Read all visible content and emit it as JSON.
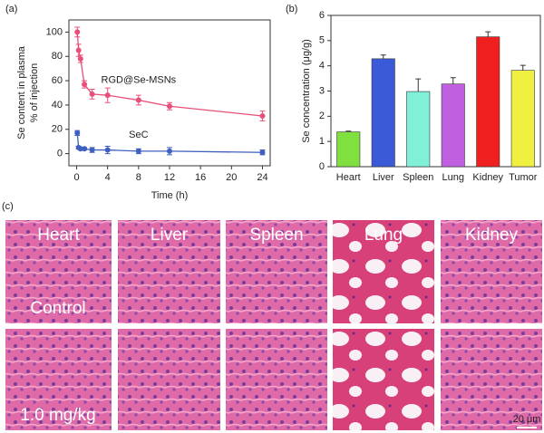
{
  "chart_data": [
    {
      "type": "line",
      "panel_label": "(a)",
      "ylabel": [
        "Se content in plasma",
        "% of injection"
      ],
      "xlabel": "Time (h)",
      "x": [
        0.083,
        0.25,
        0.5,
        1,
        2,
        4,
        8,
        12,
        24
      ],
      "series": [
        {
          "name": "RGD@Se-MSNs",
          "color": "#e8507a",
          "values": [
            100,
            85,
            78,
            57,
            49,
            48,
            44,
            39,
            31
          ],
          "errors": [
            4,
            5,
            3,
            3,
            4,
            6,
            4,
            3,
            4
          ]
        },
        {
          "name": "SeC",
          "color": "#4060c0",
          "values": [
            17,
            5,
            4,
            4,
            3,
            3,
            2,
            2,
            1
          ],
          "errors": [
            2,
            1,
            1,
            1,
            2,
            3,
            2,
            3,
            2
          ]
        }
      ],
      "xlim": [
        -1,
        25
      ],
      "xticks": [
        0,
        4,
        8,
        12,
        16,
        20,
        24
      ],
      "ylim": [
        -10,
        110
      ],
      "yticks": [
        0,
        20,
        40,
        60,
        80,
        100
      ]
    },
    {
      "type": "bar",
      "panel_label": "(b)",
      "ylabel": "Se concentration (μg/g)",
      "categories": [
        "Heart",
        "Liver",
        "Spleen",
        "Lung",
        "Kidney",
        "Tumor"
      ],
      "values": [
        1.38,
        4.28,
        2.98,
        3.28,
        5.15,
        3.82
      ],
      "errors": [
        0.03,
        0.15,
        0.5,
        0.25,
        0.2,
        0.2
      ],
      "colors": [
        "#80e040",
        "#3a5ad8",
        "#80f0d8",
        "#c060e0",
        "#f02020",
        "#f0f040"
      ],
      "ylim": [
        0,
        6
      ],
      "yticks": [
        0,
        1,
        2,
        3,
        4,
        5,
        6
      ]
    }
  ],
  "histology": {
    "panel_label": "(c)",
    "columns": [
      "Heart",
      "Liver",
      "Spleen",
      "Lung",
      "Kidney"
    ],
    "rows": [
      "Control",
      "1.0 mg/kg"
    ],
    "scale_bar": "20 μm"
  }
}
